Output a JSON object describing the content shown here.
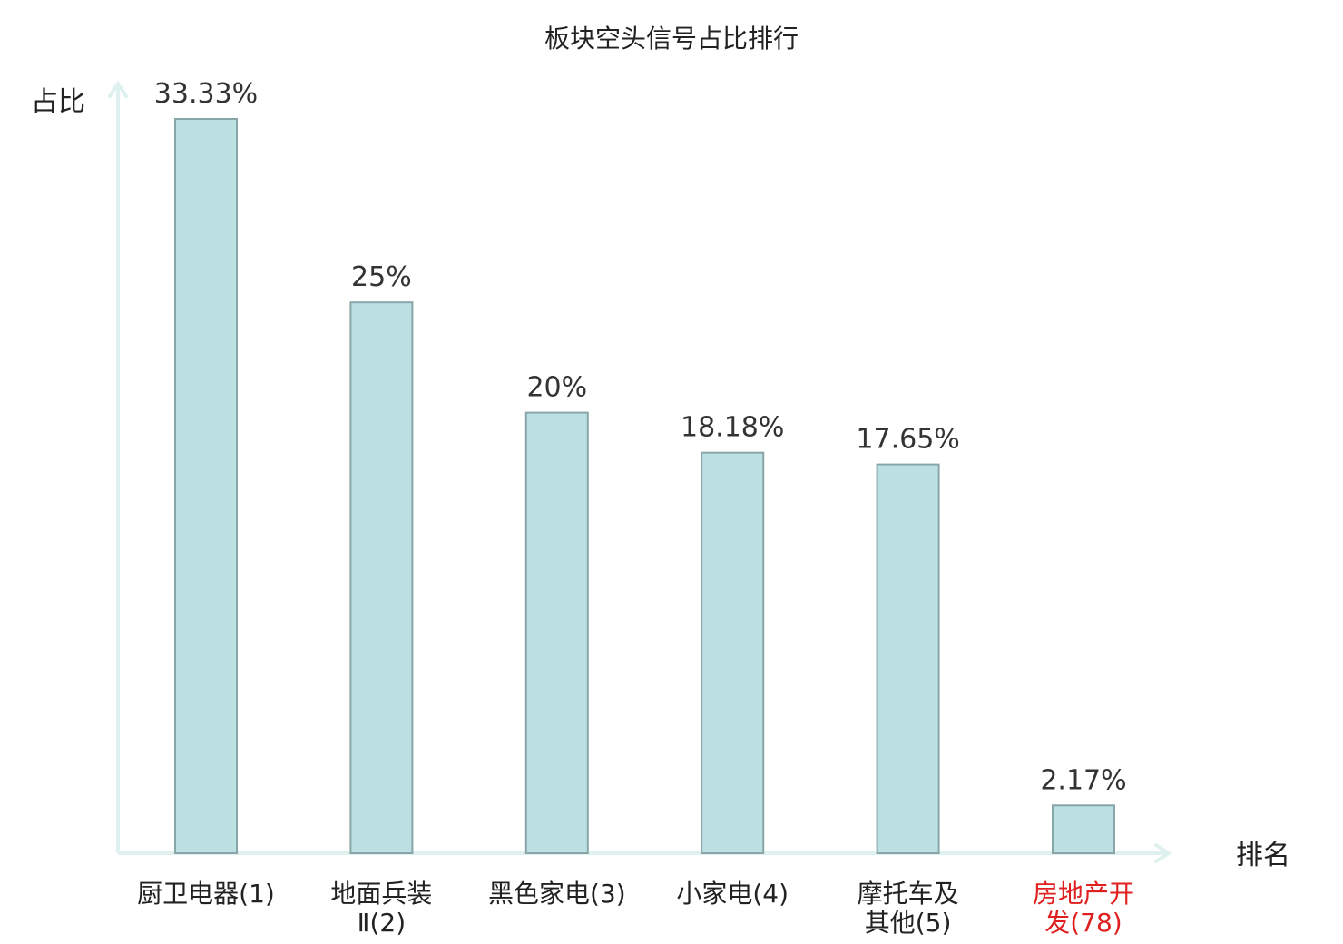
{
  "chart_data": {
    "type": "bar",
    "title": "板块空头信号占比排行",
    "xlabel": "排名",
    "ylabel": "占比",
    "categories": [
      {
        "lines": [
          "厨卫电器(1)"
        ],
        "highlight": false
      },
      {
        "lines": [
          "地面兵装",
          "Ⅱ(2)"
        ],
        "highlight": false
      },
      {
        "lines": [
          "黑色家电(3)"
        ],
        "highlight": false
      },
      {
        "lines": [
          "小家电(4)"
        ],
        "highlight": false
      },
      {
        "lines": [
          "摩托车及",
          "其他(5)"
        ],
        "highlight": false
      },
      {
        "lines": [
          "房地产开",
          "发(78)"
        ],
        "highlight": true
      }
    ],
    "values": [
      33.33,
      25,
      20,
      18.18,
      17.65,
      2.17
    ],
    "value_labels": [
      "33.33%",
      "25%",
      "20%",
      "18.18%",
      "17.65%",
      "2.17%"
    ],
    "ylim": [
      0,
      34
    ],
    "grid": false,
    "legend": "none"
  },
  "colors": {
    "bar_fill": "#bde1e3",
    "bar_stroke": "#88a6a8",
    "axis": "#dff1ef",
    "text": "#222222",
    "value_text": "#333333",
    "highlight_text": "#e02020"
  }
}
